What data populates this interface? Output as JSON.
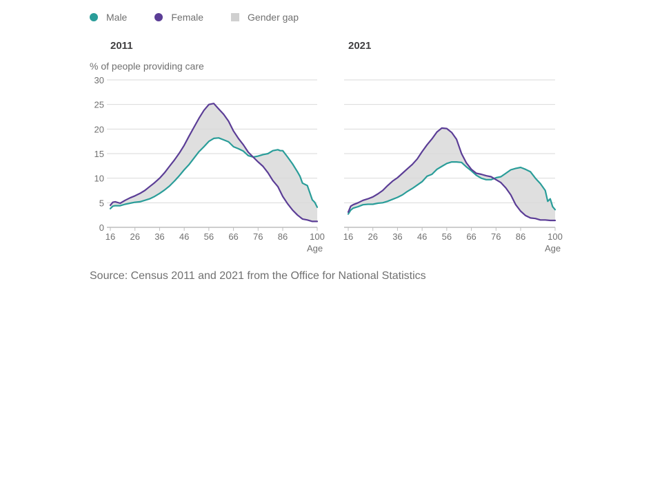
{
  "legend": {
    "male_label": "Male",
    "female_label": "Female",
    "gap_label": "Gender gap"
  },
  "colors": {
    "male": "#2a9d99",
    "female": "#5b3d96",
    "gap": "#d9d9d9",
    "grid": "#d9d9d9",
    "axis": "#bdbdbd",
    "text": "#707070"
  },
  "source": "Source: Census 2011 and 2021 from the Office for National Statistics",
  "chart_data": [
    {
      "type": "area",
      "title": "2011",
      "ylabel": "% of people providing care",
      "xlabel": "Age",
      "xlim": [
        16,
        100
      ],
      "ylim": [
        0,
        30
      ],
      "xticks": [
        "16",
        "26",
        "36",
        "46",
        "56",
        "66",
        "76",
        "86",
        "100"
      ],
      "yticks": [
        "30",
        "25",
        "20",
        "15",
        "10",
        "5",
        "0"
      ],
      "grid": true,
      "legend": "top-left",
      "series": [
        {
          "name": "Male",
          "x": [
            16,
            17,
            18,
            20,
            22,
            24,
            26,
            28,
            30,
            32,
            34,
            36,
            38,
            40,
            42,
            44,
            46,
            48,
            50,
            52,
            54,
            56,
            58,
            60,
            62,
            64,
            66,
            68,
            70,
            72,
            74,
            76,
            78,
            80,
            82,
            84,
            85,
            86,
            88,
            90,
            92,
            93,
            94,
            96,
            98,
            99,
            100
          ],
          "values": [
            3.8,
            4.3,
            4.4,
            4.4,
            4.7,
            4.9,
            5.1,
            5.2,
            5.5,
            5.8,
            6.3,
            6.9,
            7.6,
            8.4,
            9.4,
            10.5,
            11.7,
            12.8,
            14.1,
            15.4,
            16.4,
            17.5,
            18.1,
            18.2,
            17.8,
            17.4,
            16.4,
            16.0,
            15.5,
            14.6,
            14.3,
            14.5,
            14.8,
            15.0,
            15.6,
            15.8,
            15.6,
            15.6,
            14.3,
            12.9,
            11.3,
            10.4,
            9.0,
            8.5,
            5.6,
            5.1,
            4.1
          ]
        },
        {
          "name": "Female",
          "x": [
            16,
            17,
            18,
            20,
            22,
            24,
            26,
            28,
            30,
            32,
            34,
            36,
            38,
            40,
            42,
            44,
            46,
            48,
            50,
            52,
            54,
            56,
            58,
            60,
            62,
            64,
            66,
            68,
            70,
            72,
            74,
            76,
            78,
            80,
            82,
            84,
            86,
            88,
            90,
            92,
            94,
            96,
            98,
            100
          ],
          "values": [
            4.5,
            5.1,
            5.2,
            4.9,
            5.5,
            6.0,
            6.4,
            6.9,
            7.5,
            8.3,
            9.1,
            10.0,
            11.1,
            12.4,
            13.7,
            15.1,
            16.7,
            18.6,
            20.4,
            22.2,
            23.8,
            25.0,
            25.2,
            24.1,
            23.0,
            21.6,
            19.6,
            18.1,
            16.8,
            15.3,
            14.3,
            13.3,
            12.4,
            11.1,
            9.5,
            8.3,
            6.3,
            4.8,
            3.5,
            2.5,
            1.7,
            1.5,
            1.2,
            1.2
          ]
        },
        {
          "name": "Gender gap",
          "values": []
        }
      ]
    },
    {
      "type": "area",
      "title": "2021",
      "ylabel": "",
      "xlabel": "Age",
      "xlim": [
        16,
        100
      ],
      "ylim": [
        0,
        30
      ],
      "xticks": [
        "16",
        "26",
        "36",
        "46",
        "56",
        "66",
        "76",
        "86",
        "100"
      ],
      "yticks": [],
      "grid": true,
      "legend": "top-left",
      "series": [
        {
          "name": "Male",
          "x": [
            16,
            17,
            18,
            20,
            22,
            24,
            26,
            28,
            30,
            32,
            34,
            36,
            38,
            40,
            42,
            44,
            46,
            48,
            50,
            52,
            54,
            56,
            58,
            60,
            62,
            64,
            66,
            68,
            70,
            72,
            74,
            76,
            78,
            80,
            82,
            84,
            86,
            88,
            90,
            92,
            94,
            96,
            97,
            98,
            99,
            100
          ],
          "values": [
            2.7,
            3.5,
            3.9,
            4.2,
            4.6,
            4.7,
            4.7,
            4.9,
            5.0,
            5.3,
            5.7,
            6.1,
            6.6,
            7.3,
            7.9,
            8.6,
            9.3,
            10.4,
            10.8,
            11.8,
            12.4,
            13.0,
            13.3,
            13.3,
            13.2,
            12.3,
            11.5,
            10.6,
            10.0,
            9.7,
            9.7,
            10.1,
            10.3,
            11.0,
            11.7,
            12.0,
            12.2,
            11.8,
            11.3,
            10.0,
            8.9,
            7.5,
            5.3,
            5.8,
            4.2,
            3.6
          ]
        },
        {
          "name": "Female",
          "x": [
            16,
            17,
            18,
            20,
            22,
            24,
            26,
            28,
            30,
            32,
            34,
            36,
            38,
            40,
            42,
            44,
            46,
            48,
            50,
            52,
            54,
            56,
            58,
            60,
            62,
            64,
            66,
            68,
            70,
            72,
            74,
            76,
            78,
            80,
            82,
            84,
            86,
            88,
            90,
            92,
            94,
            96,
            98,
            100
          ],
          "values": [
            3.1,
            4.3,
            4.6,
            5.0,
            5.5,
            5.8,
            6.2,
            6.8,
            7.5,
            8.5,
            9.4,
            10.1,
            11.0,
            11.9,
            12.8,
            13.9,
            15.4,
            16.8,
            18.0,
            19.4,
            20.2,
            20.1,
            19.3,
            17.9,
            15.0,
            13.1,
            11.8,
            11.0,
            10.8,
            10.5,
            10.3,
            9.7,
            9.1,
            8.0,
            6.6,
            4.6,
            3.3,
            2.4,
            1.9,
            1.8,
            1.5,
            1.5,
            1.4,
            1.4
          ]
        },
        {
          "name": "Gender gap",
          "values": []
        }
      ]
    }
  ]
}
